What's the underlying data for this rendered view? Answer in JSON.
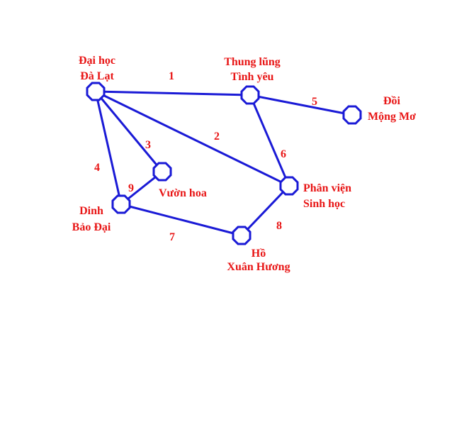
{
  "colors": {
    "graph": "#1a1ad6",
    "text": "#e81616"
  },
  "node_shape": "octagon",
  "nodes": [
    {
      "id": "dai-hoc",
      "lines": [
        "Đại học",
        "Đà Lạt"
      ]
    },
    {
      "id": "thung-lung",
      "lines": [
        "Thung lũng",
        "Tình yêu"
      ]
    },
    {
      "id": "doi",
      "lines": [
        "Đồi",
        "Mộng Mơ"
      ]
    },
    {
      "id": "vuon-hoa",
      "lines": [
        "Vườn hoa"
      ]
    },
    {
      "id": "phan-vien",
      "lines": [
        "Phân viện",
        "Sinh học"
      ]
    },
    {
      "id": "dinh",
      "lines": [
        "Dinh",
        "Bảo Đại"
      ]
    },
    {
      "id": "ho",
      "lines": [
        "Hồ",
        "Xuân Hương"
      ]
    }
  ],
  "edges": [
    {
      "from": "dai-hoc",
      "to": "thung-lung",
      "weight": "1"
    },
    {
      "from": "dai-hoc",
      "to": "phan-vien",
      "weight": "2"
    },
    {
      "from": "dai-hoc",
      "to": "vuon-hoa",
      "weight": "3"
    },
    {
      "from": "dai-hoc",
      "to": "dinh",
      "weight": "4"
    },
    {
      "from": "thung-lung",
      "to": "doi",
      "weight": "5"
    },
    {
      "from": "thung-lung",
      "to": "phan-vien",
      "weight": "6"
    },
    {
      "from": "dinh",
      "to": "ho",
      "weight": "7"
    },
    {
      "from": "ho",
      "to": "phan-vien",
      "weight": "8"
    },
    {
      "from": "dinh",
      "to": "vuon-hoa",
      "weight": "9"
    }
  ]
}
